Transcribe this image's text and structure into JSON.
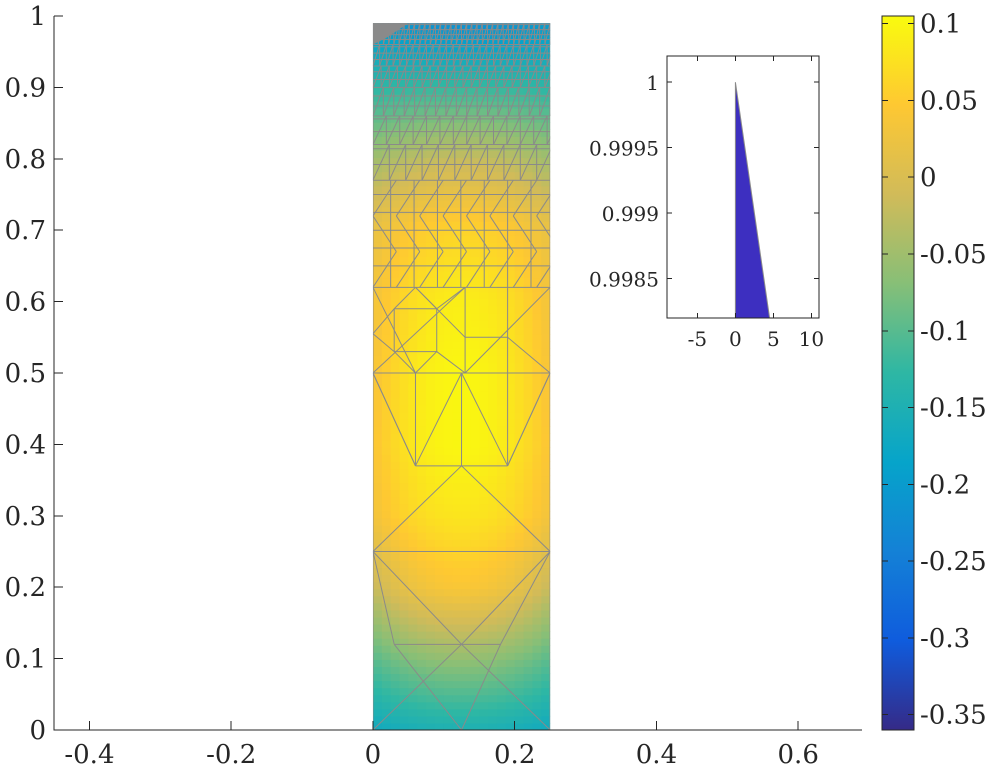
{
  "chart_data": [
    {
      "id": "main",
      "type": "heatmap",
      "description_type": "finite-element mesh with colored field",
      "xlim": [
        -0.45,
        0.69
      ],
      "ylim": [
        0,
        1
      ],
      "xticks": [
        -0.4,
        -0.2,
        0,
        0.2,
        0.4,
        0.6
      ],
      "xtick_labels": [
        "-0.4",
        "-0.2",
        "0",
        "0.2",
        "0.4",
        "0.6"
      ],
      "yticks": [
        0,
        0.1,
        0.2,
        0.3,
        0.4,
        0.5,
        0.6,
        0.7,
        0.8,
        0.9,
        1
      ],
      "ytick_labels": [
        "0",
        "0.1",
        "0.2",
        "0.3",
        "0.4",
        "0.5",
        "0.6",
        "0.7",
        "0.8",
        "0.9",
        "1"
      ],
      "domain": {
        "x": [
          0,
          0.25
        ],
        "y": [
          0,
          0.99
        ]
      },
      "grid": false,
      "field_profile": {
        "y": [
          0,
          0.1,
          0.2,
          0.3,
          0.4,
          0.5,
          0.6,
          0.7,
          0.8,
          0.9,
          0.99
        ],
        "edge_values": [
          -0.17,
          -0.1,
          -0.02,
          0.03,
          0.04,
          0.035,
          0.03,
          0.02,
          -0.05,
          -0.13,
          -0.2
        ],
        "center_values": [
          -0.15,
          -0.06,
          0.04,
          0.08,
          0.1,
          0.1,
          0.09,
          0.06,
          -0.02,
          -0.12,
          -0.22
        ]
      }
    },
    {
      "id": "inset",
      "type": "area",
      "xlim": [
        -9,
        11
      ],
      "ylim": [
        0.9982,
        1.0002
      ],
      "xticks": [
        -5,
        0,
        5,
        10
      ],
      "xtick_labels": [
        "-5",
        "0",
        "5",
        "10"
      ],
      "yticks": [
        0.9985,
        0.999,
        0.9995,
        1
      ],
      "ytick_labels": [
        "0.9985",
        "0.999",
        "0.9995",
        "1"
      ],
      "polygon": {
        "x": [
          0,
          0,
          4.5
        ],
        "y": [
          0.9982,
          1.0,
          0.9982
        ]
      },
      "fill_color": "#3d2fc0",
      "grid": false
    }
  ],
  "colorbar": {
    "min": -0.36,
    "max": 0.105,
    "ticks": [
      0.1,
      0.05,
      0,
      -0.05,
      -0.1,
      -0.15,
      -0.2,
      -0.25,
      -0.3,
      -0.35
    ],
    "tick_labels": [
      "0.1",
      "0.05",
      "0",
      "-0.05",
      "-0.1",
      "-0.15",
      "-0.2",
      "-0.25",
      "-0.3",
      "-0.35"
    ],
    "colormap": "parula",
    "colors": [
      "#352a87",
      "#0f5cdd",
      "#1481d6",
      "#06a4ca",
      "#2eb7a4",
      "#87bf77",
      "#d1bb59",
      "#fec832",
      "#f9fb0e"
    ]
  },
  "colors": {
    "mesh_line": "#8a8a8a",
    "axis": "#262626",
    "background": "#ffffff"
  }
}
